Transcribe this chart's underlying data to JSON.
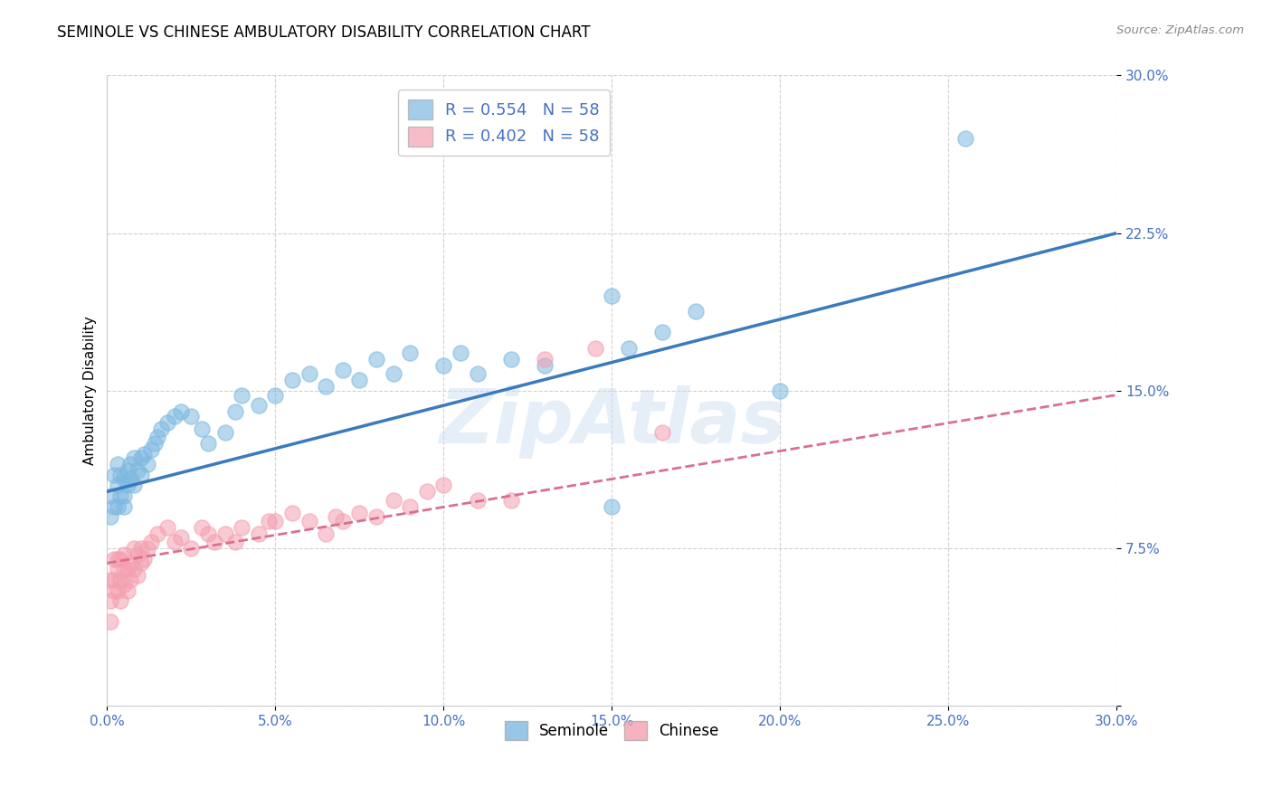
{
  "title": "SEMINOLE VS CHINESE AMBULATORY DISABILITY CORRELATION CHART",
  "source": "Source: ZipAtlas.com",
  "ylabel": "Ambulatory Disability",
  "watermark": "ZipAtlas",
  "xlim": [
    0.0,
    0.3
  ],
  "ylim": [
    0.0,
    0.3
  ],
  "xticks": [
    0.0,
    0.05,
    0.1,
    0.15,
    0.2,
    0.25,
    0.3
  ],
  "yticks": [
    0.0,
    0.075,
    0.15,
    0.225,
    0.3
  ],
  "ytick_labels": [
    "",
    "7.5%",
    "15.0%",
    "22.5%",
    "30.0%"
  ],
  "xtick_labels": [
    "0.0%",
    "5.0%",
    "10.0%",
    "15.0%",
    "20.0%",
    "25.0%",
    "30.0%"
  ],
  "seminole_R": 0.554,
  "seminole_N": 58,
  "chinese_R": 0.402,
  "chinese_N": 58,
  "seminole_color": "#7eb8e0",
  "chinese_color": "#f4a0b0",
  "seminole_line_color": "#3a7abf",
  "chinese_line_color": "#d97090",
  "tick_label_color": "#4472C4",
  "grid_color": "#cccccc",
  "background_color": "#ffffff",
  "seminole_x": [
    0.001,
    0.001,
    0.002,
    0.002,
    0.003,
    0.003,
    0.003,
    0.004,
    0.004,
    0.005,
    0.005,
    0.005,
    0.006,
    0.006,
    0.007,
    0.007,
    0.008,
    0.008,
    0.009,
    0.01,
    0.01,
    0.011,
    0.012,
    0.013,
    0.014,
    0.015,
    0.016,
    0.018,
    0.02,
    0.022,
    0.025,
    0.028,
    0.03,
    0.035,
    0.038,
    0.04,
    0.045,
    0.05,
    0.055,
    0.06,
    0.065,
    0.07,
    0.075,
    0.08,
    0.085,
    0.09,
    0.1,
    0.105,
    0.11,
    0.12,
    0.13,
    0.15,
    0.155,
    0.165,
    0.175,
    0.2,
    0.15,
    0.255
  ],
  "seminole_y": [
    0.1,
    0.09,
    0.095,
    0.11,
    0.105,
    0.095,
    0.115,
    0.1,
    0.11,
    0.1,
    0.095,
    0.108,
    0.105,
    0.112,
    0.108,
    0.115,
    0.105,
    0.118,
    0.112,
    0.11,
    0.118,
    0.12,
    0.115,
    0.122,
    0.125,
    0.128,
    0.132,
    0.135,
    0.138,
    0.14,
    0.138,
    0.132,
    0.125,
    0.13,
    0.14,
    0.148,
    0.143,
    0.148,
    0.155,
    0.158,
    0.152,
    0.16,
    0.155,
    0.165,
    0.158,
    0.168,
    0.162,
    0.168,
    0.158,
    0.165,
    0.162,
    0.095,
    0.17,
    0.178,
    0.188,
    0.15,
    0.195,
    0.27
  ],
  "chinese_x": [
    0.001,
    0.001,
    0.001,
    0.002,
    0.002,
    0.002,
    0.003,
    0.003,
    0.003,
    0.004,
    0.004,
    0.004,
    0.005,
    0.005,
    0.005,
    0.006,
    0.006,
    0.007,
    0.007,
    0.008,
    0.008,
    0.009,
    0.009,
    0.01,
    0.01,
    0.011,
    0.012,
    0.013,
    0.015,
    0.018,
    0.02,
    0.022,
    0.025,
    0.028,
    0.03,
    0.032,
    0.035,
    0.038,
    0.04,
    0.045,
    0.048,
    0.05,
    0.055,
    0.06,
    0.065,
    0.068,
    0.07,
    0.075,
    0.08,
    0.085,
    0.09,
    0.095,
    0.1,
    0.11,
    0.12,
    0.13,
    0.145,
    0.165
  ],
  "chinese_y": [
    0.06,
    0.05,
    0.04,
    0.06,
    0.055,
    0.07,
    0.055,
    0.065,
    0.07,
    0.05,
    0.06,
    0.07,
    0.058,
    0.065,
    0.072,
    0.055,
    0.065,
    0.06,
    0.068,
    0.065,
    0.075,
    0.062,
    0.072,
    0.068,
    0.075,
    0.07,
    0.075,
    0.078,
    0.082,
    0.085,
    0.078,
    0.08,
    0.075,
    0.085,
    0.082,
    0.078,
    0.082,
    0.078,
    0.085,
    0.082,
    0.088,
    0.088,
    0.092,
    0.088,
    0.082,
    0.09,
    0.088,
    0.092,
    0.09,
    0.098,
    0.095,
    0.102,
    0.105,
    0.098,
    0.098,
    0.165,
    0.17,
    0.13
  ],
  "seminole_line_y0": 0.102,
  "seminole_line_y1": 0.225,
  "chinese_line_y0": 0.068,
  "chinese_line_y1": 0.148
}
